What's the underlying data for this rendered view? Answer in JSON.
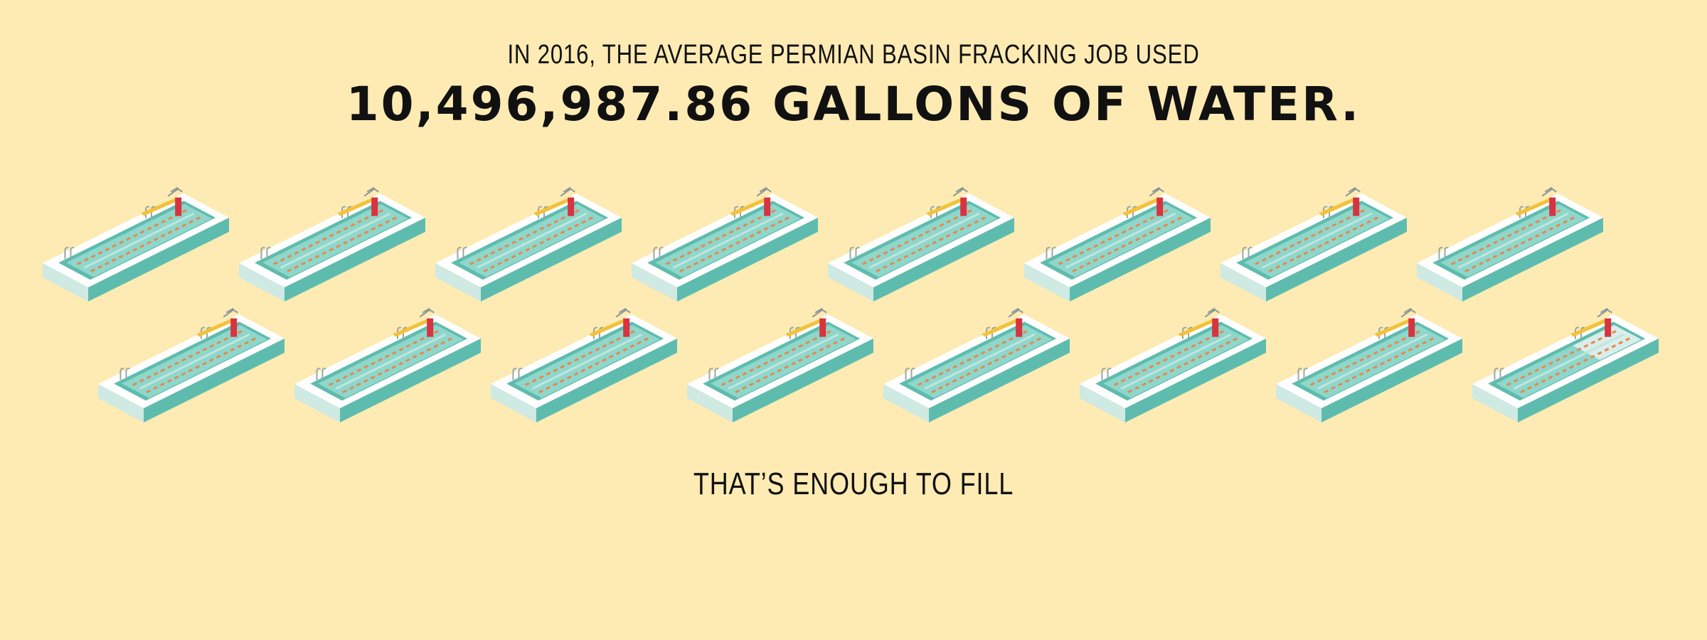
{
  "header": {
    "headline": "IN 2016, THE AVERAGE PERMIAN BASIN FRACKING JOB USED",
    "figure": "10,496,987.86 GALLONS OF WATER."
  },
  "illustration": {
    "icon": "swimming-pool-icon",
    "full_pools": 15,
    "partial_pool_fill": 0.65
  },
  "footer": {
    "caption": "THAT’S ENOUGH TO FILL"
  },
  "colors": {
    "background": "#fdebb3",
    "water": "#8fd6cb",
    "water_dark": "#5ebcae",
    "pool_rim": "#ffffff",
    "lane_marker": "#e5894d",
    "diving_board": "#f2c23a",
    "board_stand": "#d9333f"
  }
}
